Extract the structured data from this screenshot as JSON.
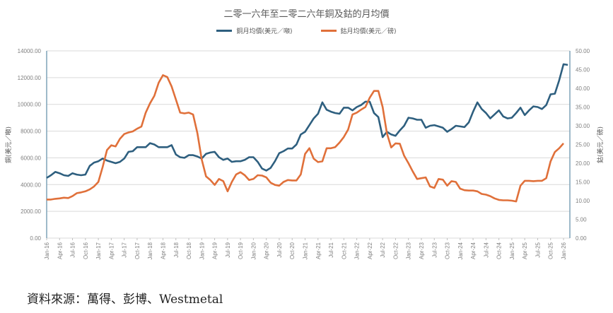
{
  "chart_data": {
    "type": "line",
    "title": "二零一六年至二零二六年銅及鈷的月均價",
    "ylabel": "銅(美元／噸)",
    "y2label": "鈷(美元／磅)",
    "ylim": [
      0,
      14000
    ],
    "y2lim": [
      0,
      50
    ],
    "yticks": [
      "0.00",
      "2000.00",
      "4000.00",
      "6000.00",
      "8000.00",
      "10000.00",
      "12000.00",
      "14000.00"
    ],
    "y2ticks": [
      "0.00",
      "5.00",
      "10.00",
      "15.00",
      "20.00",
      "25.00",
      "30.00",
      "35.00",
      "40.00",
      "45.00",
      "50.00"
    ],
    "xticks": [
      "Jan-16",
      "Apr-16",
      "Jul-16",
      "Oct-16",
      "Jan-17",
      "Apr-17",
      "Jul-17",
      "Oct-17",
      "Jan-18",
      "Apr-18",
      "Jul-18",
      "Oct-18",
      "Jan-19",
      "Apr-19",
      "Jul-19",
      "Oct-19",
      "Jan-20",
      "Apr-20",
      "Jul-20",
      "Oct-20",
      "Jan-21",
      "Apr-21",
      "Jul-21",
      "Oct-21",
      "Jan-22",
      "Apr-22",
      "Jul-22",
      "Oct-22",
      "Jan-23",
      "Apr-23",
      "Jul-23",
      "Oct-23",
      "Jan-24",
      "Apr-24",
      "Jul-24",
      "Oct-24",
      "Jan-25",
      "Apr-25",
      "Jul-25",
      "Oct-25",
      "Jan-26"
    ],
    "x_start": "Jan-16",
    "grid": true,
    "legend": "top",
    "series": [
      {
        "name": "銅月均價(美元／噸)",
        "axis": "left",
        "color": "#2e5f7f",
        "values": [
          4500,
          4700,
          4950,
          4850,
          4700,
          4650,
          4850,
          4750,
          4700,
          4750,
          5400,
          5650,
          5750,
          5950,
          5800,
          5700,
          5600,
          5700,
          5950,
          6450,
          6500,
          6800,
          6800,
          6800,
          7100,
          7000,
          6800,
          6800,
          6800,
          6950,
          6250,
          6050,
          6000,
          6200,
          6200,
          6100,
          5950,
          6300,
          6400,
          6450,
          6050,
          5850,
          5950,
          5700,
          5750,
          5750,
          5850,
          6050,
          6050,
          5700,
          5200,
          5050,
          5250,
          5750,
          6350,
          6500,
          6700,
          6700,
          7000,
          7750,
          7950,
          8450,
          8950,
          9300,
          10150,
          9600,
          9450,
          9350,
          9300,
          9750,
          9750,
          9550,
          9800,
          9950,
          10200,
          10200,
          9350,
          9050,
          7550,
          7950,
          7750,
          7650,
          8050,
          8400,
          9000,
          8950,
          8850,
          8850,
          8250,
          8400,
          8450,
          8350,
          8250,
          7950,
          8150,
          8400,
          8350,
          8300,
          8650,
          9450,
          10150,
          9650,
          9350,
          8950,
          9250,
          9550,
          9100,
          8950,
          9000,
          9350,
          9750,
          9200,
          9550,
          9850,
          9800,
          9650,
          9950,
          10750,
          10800,
          11800,
          13000,
          12950
        ]
      },
      {
        "name": "鈷月均價(美元／磅)",
        "axis": "right",
        "color": "#e0703a",
        "values": [
          10.3,
          10.3,
          10.5,
          10.6,
          10.8,
          10.7,
          11.2,
          12.0,
          12.2,
          12.5,
          13.0,
          13.8,
          15.0,
          19.0,
          23.5,
          24.8,
          24.5,
          26.5,
          27.8,
          28.2,
          28.5,
          29.2,
          29.8,
          33.5,
          36.0,
          38.0,
          41.5,
          43.5,
          43.0,
          40.5,
          37.0,
          33.5,
          33.3,
          33.5,
          33.0,
          28.0,
          21.0,
          16.5,
          15.5,
          14.2,
          15.8,
          15.2,
          12.5,
          15.0,
          17.0,
          17.6,
          16.8,
          15.5,
          15.8,
          16.8,
          16.7,
          16.2,
          14.8,
          14.2,
          14.0,
          15.0,
          15.5,
          15.4,
          15.4,
          17.0,
          22.5,
          24.0,
          21.2,
          20.3,
          20.5,
          24.0,
          24.0,
          24.3,
          25.5,
          27.0,
          29.0,
          33.0,
          33.5,
          34.3,
          35.0,
          37.5,
          39.3,
          39.3,
          35.0,
          28.0,
          24.2,
          25.3,
          25.2,
          22.0,
          20.0,
          17.8,
          15.8,
          16.0,
          16.2,
          13.8,
          13.4,
          15.8,
          15.6,
          14.0,
          15.2,
          15.0,
          13.2,
          12.8,
          12.7,
          12.7,
          12.5,
          11.8,
          11.6,
          11.2,
          10.6,
          10.2,
          10.1,
          10.1,
          10.0,
          9.8,
          14.0,
          15.3,
          15.3,
          15.2,
          15.3,
          15.3,
          16.0,
          20.5,
          23.0,
          24.0,
          25.3
        ]
      }
    ]
  },
  "source": "資料來源：萬得、彭博、Westmetal"
}
